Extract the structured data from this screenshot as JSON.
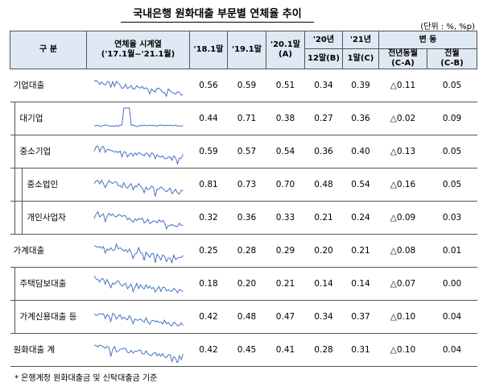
{
  "header": {
    "title": "국내은행 원화대출 부문별 연체율 추이",
    "unit": "(단위 : %, %p)"
  },
  "table": {
    "columns": {
      "category": "구 분",
      "series": "연체율 시계열",
      "series_range": "('17.1월~'21.1월)",
      "c1": "'18.1말",
      "c2": "'19.1말",
      "c3": "'20.1말",
      "c3_note": "(A)",
      "c4_top": "'20년",
      "c4": "12말(B)",
      "c5_top": "'21년",
      "c5": "1말(C)",
      "change": "변 동",
      "c6": "전년동월",
      "c6_note": "(C-A)",
      "c7": "전월",
      "c7_note": "(C-B)"
    },
    "rows": [
      {
        "label": "기업대출",
        "values": [
          "0.56",
          "0.59",
          "0.51",
          "0.34",
          "0.39",
          "△0.11",
          "0.05"
        ]
      },
      {
        "label": "대기업",
        "values": [
          "0.44",
          "0.71",
          "0.38",
          "0.27",
          "0.36",
          "△0.02",
          "0.09"
        ]
      },
      {
        "label": "중소기업",
        "values": [
          "0.59",
          "0.57",
          "0.54",
          "0.36",
          "0.40",
          "△0.13",
          "0.05"
        ]
      },
      {
        "label": "중소법인",
        "values": [
          "0.81",
          "0.73",
          "0.70",
          "0.48",
          "0.54",
          "△0.16",
          "0.05"
        ]
      },
      {
        "label": "개인사업자",
        "values": [
          "0.32",
          "0.36",
          "0.33",
          "0.21",
          "0.24",
          "△0.09",
          "0.03"
        ]
      },
      {
        "label": "가계대출",
        "values": [
          "0.25",
          "0.28",
          "0.29",
          "0.20",
          "0.21",
          "△0.08",
          "0.01"
        ]
      },
      {
        "label": "주택담보대출",
        "values": [
          "0.18",
          "0.20",
          "0.21",
          "0.14",
          "0.14",
          "△0.07",
          "0.00"
        ]
      },
      {
        "label": "가계신용대출 등",
        "values": [
          "0.42",
          "0.48",
          "0.47",
          "0.34",
          "0.37",
          "△0.10",
          "0.04"
        ]
      },
      {
        "label": "원화대출 계",
        "values": [
          "0.42",
          "0.45",
          "0.41",
          "0.28",
          "0.31",
          "△0.10",
          "0.04"
        ]
      }
    ]
  },
  "footnote": "* 은행계정 원화대출금 및 신탁대출금 기준"
}
